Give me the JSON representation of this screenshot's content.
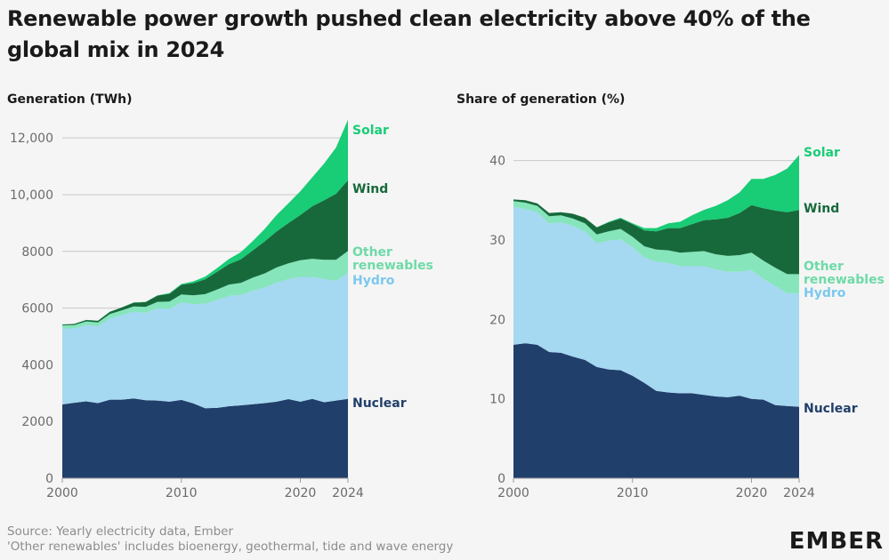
{
  "title": "Renewable power growth pushed clean electricity above 40% of the global mix in 2024",
  "footer": {
    "source": "Source: Yearly electricity data, Ember",
    "note": "'Other renewables' includes bioenergy, geothermal, tide and wave energy"
  },
  "logo": {
    "text": "EMBER"
  },
  "colors": {
    "nuclear": "#213f6b",
    "hydro": "#a5d8f1",
    "other": "#86e5bb",
    "wind": "#17693b",
    "solar": "#19cc76",
    "nuclear_label": "#213f6b",
    "hydro_label": "#7cc8ee",
    "other_label": "#6edaa8",
    "wind_label": "#17693b",
    "solar_label": "#19cc76"
  },
  "chart_data": [
    {
      "type": "area",
      "stacked": true,
      "title": "Generation (TWh)",
      "x": [
        2000,
        2001,
        2002,
        2003,
        2004,
        2005,
        2006,
        2007,
        2008,
        2009,
        2010,
        2011,
        2012,
        2013,
        2014,
        2015,
        2016,
        2017,
        2018,
        2019,
        2020,
        2021,
        2022,
        2023,
        2024
      ],
      "ylim": [
        0,
        12600
      ],
      "yticks": [
        0,
        2000,
        4000,
        6000,
        8000,
        10000,
        12000
      ],
      "ytick_labels": [
        "0",
        "2000",
        "4000",
        "6000",
        "8000",
        "10,000",
        "12,000"
      ],
      "xticks": [
        2000,
        2010,
        2020,
        2024
      ],
      "series": [
        {
          "name": "Nuclear",
          "key": "nuclear",
          "values": [
            2600,
            2660,
            2710,
            2650,
            2770,
            2770,
            2810,
            2750,
            2740,
            2700,
            2760,
            2640,
            2470,
            2480,
            2540,
            2570,
            2610,
            2650,
            2700,
            2790,
            2700,
            2800,
            2680,
            2740,
            2800
          ]
        },
        {
          "name": "Hydro",
          "key": "hydro",
          "values": [
            2680,
            2620,
            2690,
            2700,
            2870,
            2980,
            3060,
            3080,
            3250,
            3270,
            3440,
            3500,
            3680,
            3800,
            3890,
            3890,
            4000,
            4080,
            4200,
            4230,
            4400,
            4300,
            4340,
            4220,
            4450
          ]
        },
        {
          "name": "Other renewables",
          "key": "other",
          "values": [
            110,
            120,
            130,
            140,
            150,
            170,
            190,
            210,
            230,
            260,
            280,
            310,
            340,
            370,
            400,
            430,
            460,
            490,
            530,
            560,
            590,
            640,
            680,
            740,
            760
          ]
        },
        {
          "name": "Wind",
          "key": "wind",
          "values": [
            30,
            40,
            50,
            60,
            80,
            100,
            130,
            170,
            220,
            275,
            340,
            430,
            520,
            630,
            720,
            830,
            960,
            1130,
            1270,
            1420,
            1590,
            1850,
            2100,
            2330,
            2500
          ]
        },
        {
          "name": "Solar",
          "key": "solar",
          "values": [
            1,
            2,
            3,
            4,
            5,
            5,
            6,
            7,
            12,
            20,
            30,
            60,
            100,
            130,
            180,
            250,
            330,
            440,
            580,
            690,
            840,
            1020,
            1300,
            1630,
            2130
          ]
        }
      ]
    },
    {
      "type": "area",
      "stacked": true,
      "title": "Share of generation (%)",
      "x": [
        2000,
        2001,
        2002,
        2003,
        2004,
        2005,
        2006,
        2007,
        2008,
        2009,
        2010,
        2011,
        2012,
        2013,
        2014,
        2015,
        2016,
        2017,
        2018,
        2019,
        2020,
        2021,
        2022,
        2023,
        2024
      ],
      "ylim": [
        0,
        45
      ],
      "yticks": [
        0,
        10,
        20,
        30,
        40
      ],
      "ytick_labels": [
        "0",
        "10",
        "20",
        "30",
        "40"
      ],
      "xticks": [
        2000,
        2010,
        2020,
        2024
      ],
      "series": [
        {
          "name": "Nuclear",
          "key": "nuclear",
          "values": [
            16.8,
            17.0,
            16.8,
            15.9,
            15.8,
            15.3,
            14.9,
            14.0,
            13.7,
            13.6,
            12.9,
            12.0,
            11.0,
            10.8,
            10.7,
            10.7,
            10.5,
            10.3,
            10.2,
            10.4,
            10.0,
            9.9,
            9.2,
            9.1,
            9.0
          ]
        },
        {
          "name": "Hydro",
          "key": "hydro",
          "values": [
            17.4,
            16.9,
            16.7,
            16.2,
            16.4,
            16.5,
            16.2,
            15.6,
            16.2,
            16.5,
            16.2,
            15.8,
            16.3,
            16.3,
            16.0,
            16.0,
            16.2,
            16.0,
            15.8,
            15.6,
            16.2,
            15.2,
            15.0,
            14.2,
            14.3
          ]
        },
        {
          "name": "Other renewables",
          "key": "other",
          "values": [
            0.7,
            0.8,
            0.8,
            0.9,
            0.9,
            0.9,
            1.0,
            1.1,
            1.2,
            1.3,
            1.3,
            1.4,
            1.5,
            1.6,
            1.7,
            1.8,
            1.9,
            1.9,
            2.0,
            2.1,
            2.2,
            2.3,
            2.3,
            2.4,
            2.4
          ]
        },
        {
          "name": "Wind",
          "key": "wind",
          "values": [
            0.2,
            0.3,
            0.3,
            0.4,
            0.4,
            0.6,
            0.7,
            0.9,
            1.1,
            1.3,
            1.6,
            2.0,
            2.3,
            2.8,
            3.1,
            3.5,
            3.9,
            4.4,
            4.8,
            5.3,
            6.0,
            6.6,
            7.2,
            7.8,
            8.1
          ]
        },
        {
          "name": "Solar",
          "key": "solar",
          "values": [
            0.0,
            0.0,
            0.0,
            0.0,
            0.0,
            0.0,
            0.0,
            0.0,
            0.1,
            0.1,
            0.1,
            0.3,
            0.4,
            0.6,
            0.8,
            1.1,
            1.3,
            1.7,
            2.2,
            2.6,
            3.3,
            3.7,
            4.5,
            5.5,
            6.9
          ]
        }
      ]
    }
  ]
}
